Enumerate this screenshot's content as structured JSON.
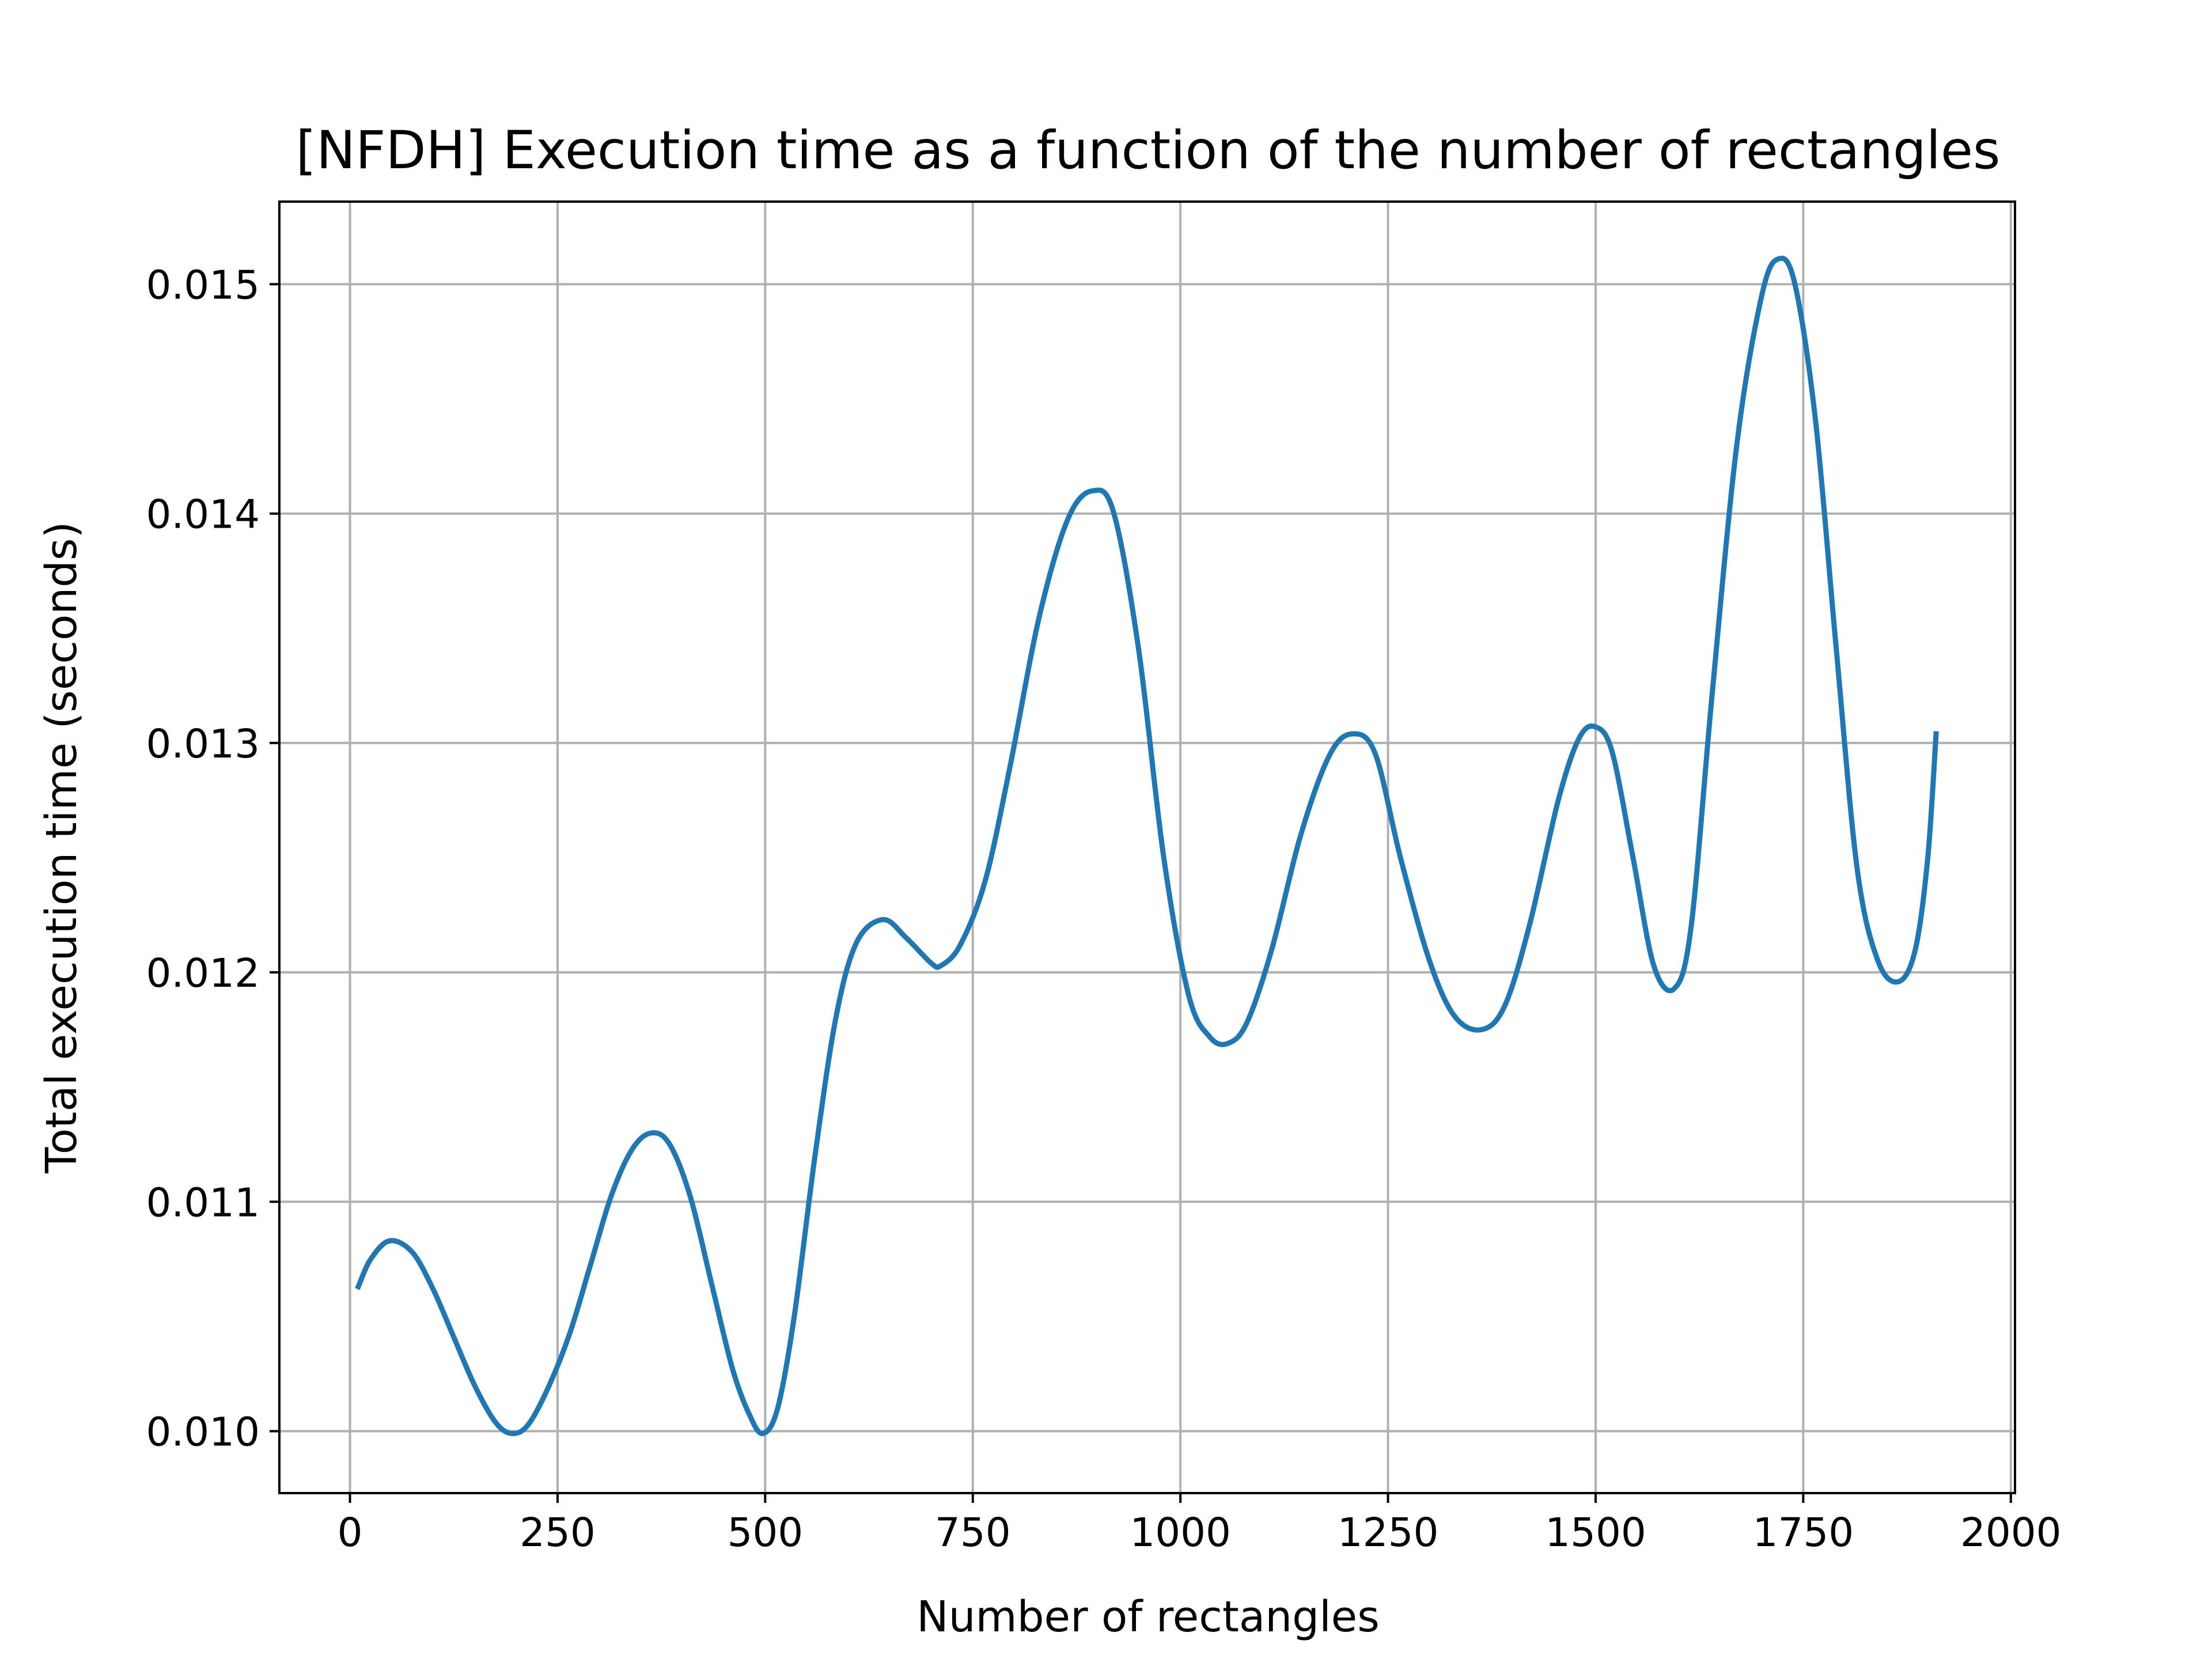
{
  "chart_data": {
    "type": "line",
    "title": "[NFDH] Execution time as a function of the number of rectangles",
    "xlabel": "Number of rectangles",
    "ylabel": "Total execution time (seconds)",
    "xlim": [
      -85,
      2005
    ],
    "ylim": [
      0.00973,
      0.01536
    ],
    "xticks": [
      0,
      250,
      500,
      750,
      1000,
      1250,
      1500,
      1750,
      2000
    ],
    "xtick_labels": [
      "0",
      "250",
      "500",
      "750",
      "1000",
      "1250",
      "1500",
      "1750",
      "2000"
    ],
    "yticks": [
      0.01,
      0.011,
      0.012,
      0.013,
      0.014,
      0.015
    ],
    "ytick_labels": [
      "0.010",
      "0.011",
      "0.012",
      "0.013",
      "0.014",
      "0.015"
    ],
    "grid": true,
    "legend": false,
    "series": [
      {
        "color": "#1f77b4",
        "points": [
          [
            10,
            0.01063
          ],
          [
            25,
            0.01075
          ],
          [
            48,
            0.01083
          ],
          [
            75,
            0.01078
          ],
          [
            100,
            0.01062
          ],
          [
            125,
            0.01041
          ],
          [
            150,
            0.0102
          ],
          [
            175,
            0.01004
          ],
          [
            195,
            0.00999
          ],
          [
            215,
            0.01003
          ],
          [
            240,
            0.0102
          ],
          [
            265,
            0.01043
          ],
          [
            290,
            0.01073
          ],
          [
            315,
            0.01103
          ],
          [
            340,
            0.01123
          ],
          [
            363,
            0.0113
          ],
          [
            385,
            0.01125
          ],
          [
            410,
            0.01102
          ],
          [
            435,
            0.01065
          ],
          [
            460,
            0.01028
          ],
          [
            480,
            0.01008
          ],
          [
            497,
            0.00999
          ],
          [
            515,
            0.0101
          ],
          [
            535,
            0.0105
          ],
          [
            560,
            0.0112
          ],
          [
            585,
            0.0118
          ],
          [
            610,
            0.01213
          ],
          [
            642,
            0.01223
          ],
          [
            670,
            0.01215
          ],
          [
            700,
            0.01204
          ],
          [
            712,
            0.01203
          ],
          [
            735,
            0.01212
          ],
          [
            765,
            0.0124
          ],
          [
            795,
            0.0129
          ],
          [
            830,
            0.01355
          ],
          [
            865,
            0.01398
          ],
          [
            895,
            0.0141
          ],
          [
            920,
            0.014
          ],
          [
            950,
            0.0134
          ],
          [
            980,
            0.0125
          ],
          [
            1010,
            0.0119
          ],
          [
            1035,
            0.01172
          ],
          [
            1057,
            0.01169
          ],
          [
            1080,
            0.01178
          ],
          [
            1110,
            0.0121
          ],
          [
            1145,
            0.0126
          ],
          [
            1180,
            0.01295
          ],
          [
            1208,
            0.01304
          ],
          [
            1235,
            0.01295
          ],
          [
            1265,
            0.0125
          ],
          [
            1300,
            0.01205
          ],
          [
            1330,
            0.01181
          ],
          [
            1362,
            0.01175
          ],
          [
            1390,
            0.01185
          ],
          [
            1420,
            0.0122
          ],
          [
            1455,
            0.01275
          ],
          [
            1480,
            0.01302
          ],
          [
            1500,
            0.01307
          ],
          [
            1520,
            0.01296
          ],
          [
            1545,
            0.0125
          ],
          [
            1570,
            0.01203
          ],
          [
            1595,
            0.01193
          ],
          [
            1615,
            0.0122
          ],
          [
            1640,
            0.0132
          ],
          [
            1670,
            0.0143
          ],
          [
            1700,
            0.01495
          ],
          [
            1720,
            0.01511
          ],
          [
            1740,
            0.015
          ],
          [
            1765,
            0.0144
          ],
          [
            1790,
            0.0134
          ],
          [
            1815,
            0.01245
          ],
          [
            1840,
            0.01205
          ],
          [
            1865,
            0.01196
          ],
          [
            1885,
            0.0121
          ],
          [
            1900,
            0.0125
          ],
          [
            1910,
            0.01304
          ]
        ]
      }
    ]
  }
}
